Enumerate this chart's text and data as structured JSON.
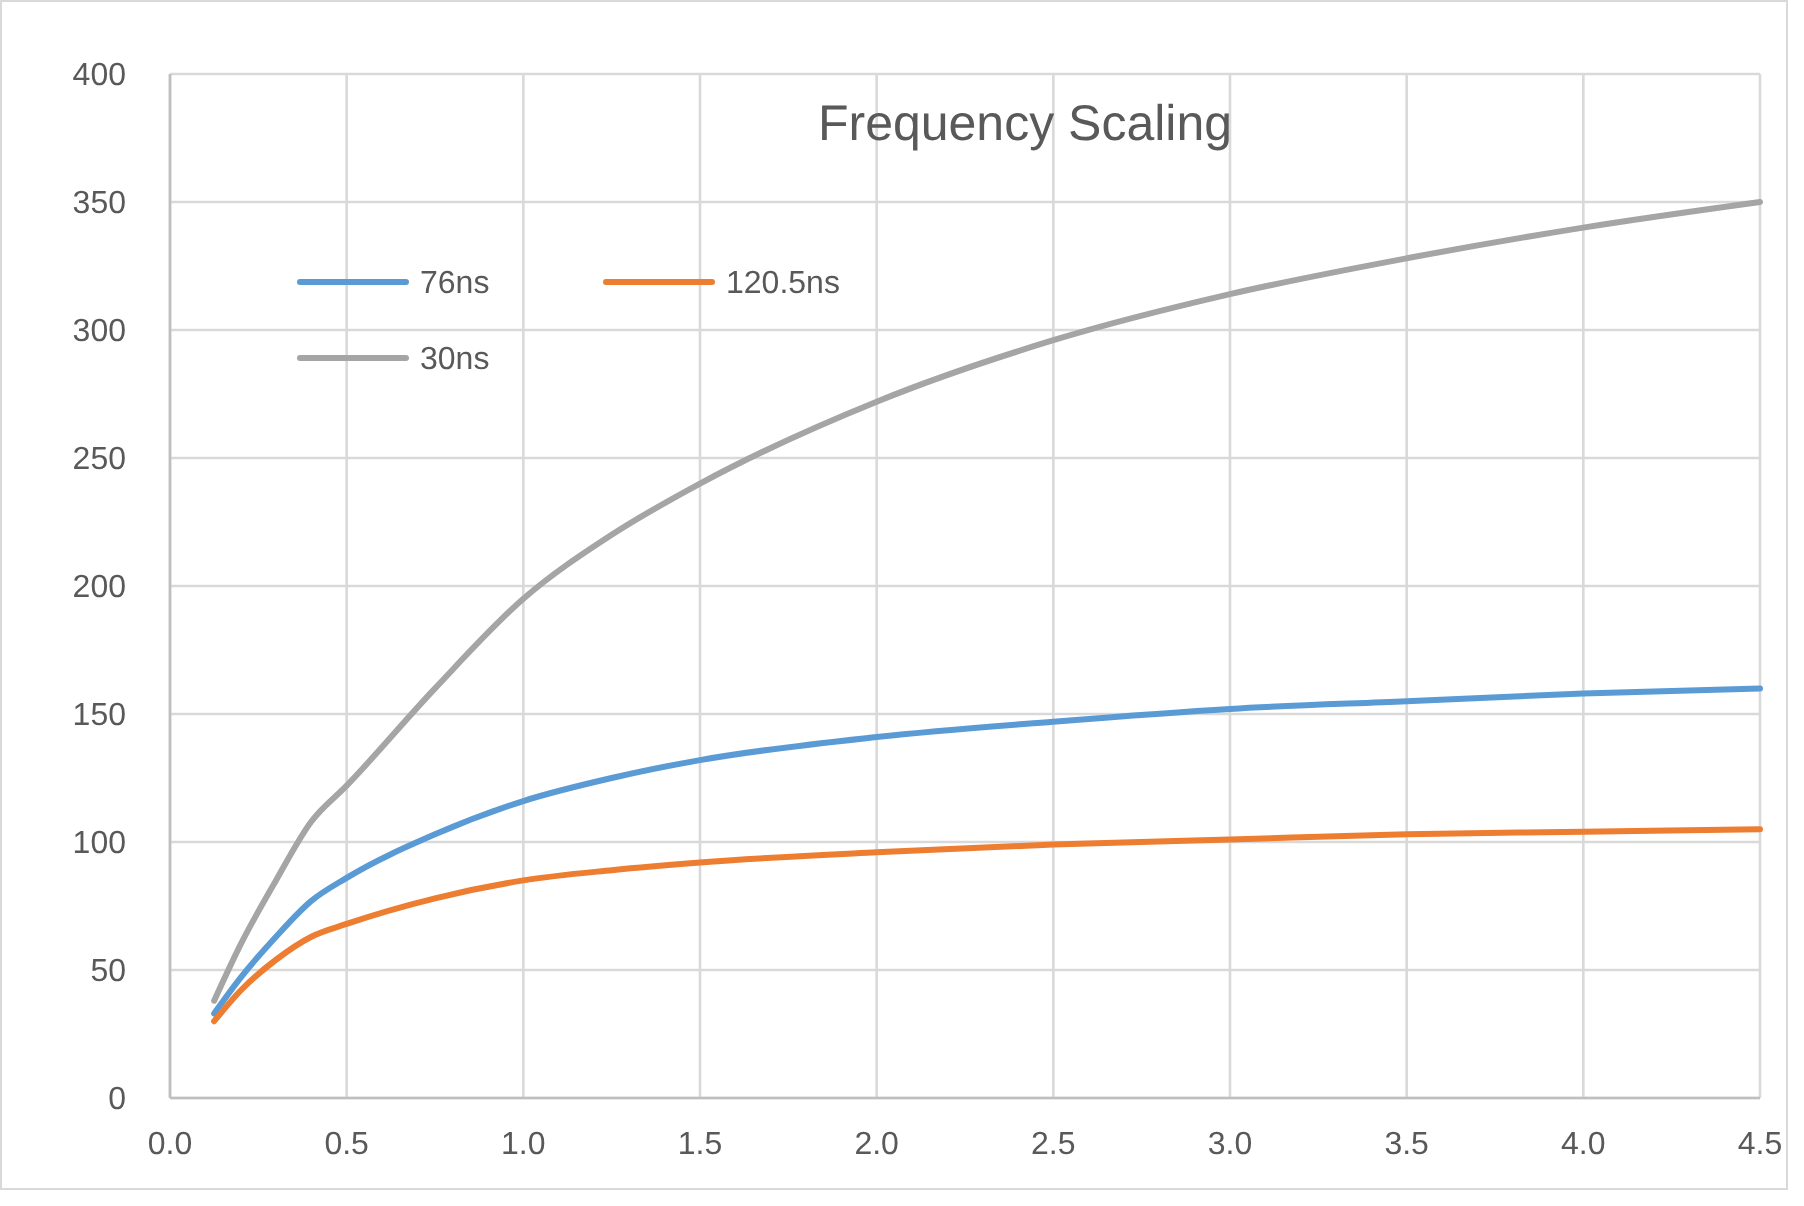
{
  "chart_data": {
    "type": "line",
    "title": "Frequency Scaling",
    "x": [
      0.125,
      0.2,
      0.3,
      0.4,
      0.5,
      0.75,
      1.0,
      1.25,
      1.5,
      2.0,
      2.5,
      3.0,
      3.5,
      4.0,
      4.5
    ],
    "series": [
      {
        "name": "76ns",
        "color": "#5b9bd5",
        "values": [
          33,
          47,
          63,
          77,
          86,
          103,
          116,
          125,
          132,
          141,
          147,
          152,
          155,
          158,
          160
        ]
      },
      {
        "name": "120.5ns",
        "color": "#ed7d31",
        "values": [
          30,
          42,
          54,
          63,
          68,
          78,
          85,
          89,
          92,
          96,
          99,
          101,
          103,
          104,
          105
        ]
      },
      {
        "name": "30ns",
        "color": "#a5a5a5",
        "values": [
          38,
          60,
          85,
          108,
          122,
          160,
          195,
          220,
          240,
          272,
          296,
          314,
          328,
          340,
          350
        ]
      }
    ],
    "xlim": [
      0,
      4.5
    ],
    "xticks": [
      {
        "value": 0,
        "label": "0.0"
      },
      0.5,
      {
        "value": 1,
        "label": "1.0"
      },
      1.5,
      {
        "value": 2,
        "label": "2.0"
      },
      2.5,
      {
        "value": 3,
        "label": "3.0"
      },
      3.5,
      {
        "value": 4,
        "label": "4.0"
      },
      4.5
    ],
    "ylim": [
      0,
      400
    ],
    "yticks": [
      0,
      50,
      100,
      150,
      200,
      250,
      300,
      350,
      400
    ],
    "grid": true,
    "legend": "top left",
    "marker": "none",
    "line_style": "solid"
  }
}
